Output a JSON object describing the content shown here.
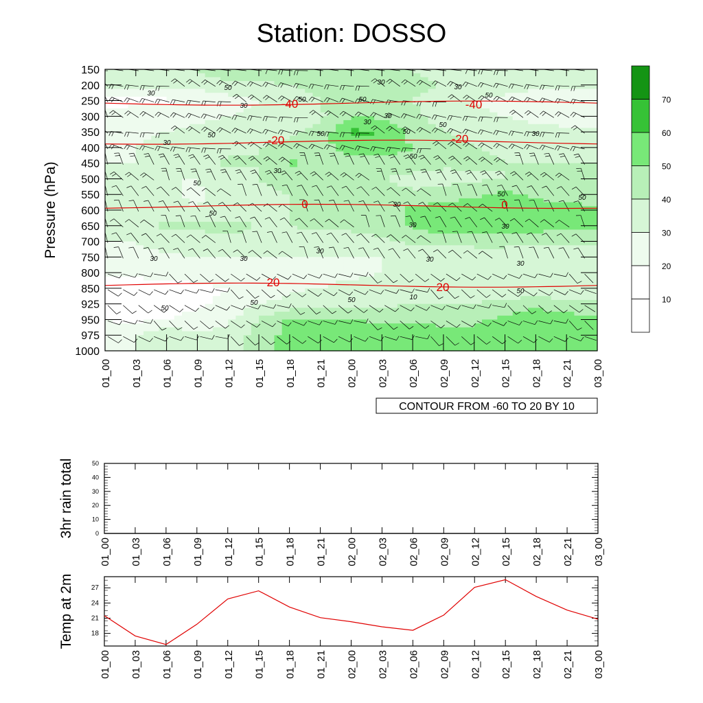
{
  "title": "Station: DOSSO",
  "chart_data": [
    {
      "type": "heatmap",
      "name": "upper-air cross section",
      "ylabel": "Pressure (hPa)",
      "y_ticks": [
        150,
        200,
        250,
        300,
        350,
        400,
        450,
        500,
        550,
        600,
        650,
        700,
        750,
        800,
        850,
        925,
        950,
        975,
        1000
      ],
      "x_ticks": [
        "01_00",
        "01_03",
        "01_06",
        "01_09",
        "01_12",
        "01_15",
        "01_18",
        "01_21",
        "02_00",
        "02_03",
        "02_06",
        "02_09",
        "02_12",
        "02_15",
        "02_18",
        "02_21",
        "03_00"
      ],
      "fill_levels": [
        10,
        20,
        30,
        40,
        50,
        60,
        70
      ],
      "fill_colors": [
        "#ffffff",
        "#ffffff",
        "#eefbee",
        "#d6f6d6",
        "#b8efb8",
        "#78e878",
        "#36c236",
        "#149414"
      ],
      "colorbar_labels": [
        "10",
        "20",
        "30",
        "40",
        "50",
        "60",
        "70"
      ],
      "contour_info": "CONTOUR FROM -60 TO 20 BY 10",
      "red_contours": [
        {
          "label": "-40",
          "pressure": 258
        },
        {
          "label": "-20",
          "pressure": 383
        },
        {
          "label": "0",
          "pressure": 588
        },
        {
          "label": "20",
          "pressure": 840
        }
      ],
      "red_contour_labels": [
        "-40",
        "-40",
        "-20",
        "-20",
        "0",
        "0",
        "20",
        "20"
      ],
      "black_contour_labels": [
        "50",
        "30",
        "50",
        "50",
        "30",
        "30",
        "50",
        "30",
        "30",
        "30",
        "50",
        "50",
        "30",
        "50",
        "50",
        "30",
        "50",
        "30",
        "50",
        "50",
        "50",
        "30",
        "50",
        "30",
        "30",
        "30",
        "30",
        "30",
        "30",
        "30",
        "50",
        "10",
        "50",
        "50",
        "50"
      ],
      "rh_field": [
        [
          40,
          40,
          40,
          40,
          50,
          50,
          45,
          40,
          40,
          45,
          40,
          35,
          35,
          40,
          40,
          40,
          40
        ],
        [
          32,
          32,
          32,
          34,
          36,
          38,
          40,
          42,
          45,
          46,
          44,
          40,
          38,
          36,
          34,
          32,
          32
        ],
        [
          18,
          18,
          18,
          22,
          26,
          30,
          35,
          40,
          48,
          45,
          40,
          35,
          30,
          26,
          22,
          20,
          20
        ],
        [
          22,
          24,
          26,
          28,
          30,
          32,
          34,
          38,
          50,
          48,
          42,
          36,
          32,
          30,
          28,
          26,
          26
        ],
        [
          28,
          28,
          30,
          32,
          34,
          36,
          38,
          44,
          62,
          60,
          46,
          40,
          36,
          34,
          32,
          32,
          32
        ],
        [
          28,
          30,
          32,
          34,
          38,
          40,
          42,
          46,
          56,
          56,
          50,
          44,
          40,
          38,
          36,
          36,
          36
        ],
        [
          30,
          30,
          32,
          36,
          42,
          40,
          52,
          46,
          46,
          46,
          46,
          42,
          42,
          40,
          40,
          40,
          40
        ],
        [
          32,
          32,
          30,
          30,
          36,
          40,
          42,
          44,
          44,
          40,
          36,
          36,
          38,
          40,
          42,
          42,
          42
        ],
        [
          34,
          34,
          32,
          28,
          34,
          38,
          40,
          42,
          44,
          44,
          42,
          44,
          48,
          52,
          48,
          46,
          44
        ],
        [
          36,
          36,
          34,
          30,
          36,
          38,
          40,
          42,
          44,
          46,
          52,
          56,
          56,
          56,
          54,
          54,
          52
        ],
        [
          34,
          36,
          42,
          42,
          42,
          40,
          40,
          42,
          42,
          44,
          52,
          56,
          56,
          56,
          54,
          54,
          52
        ],
        [
          30,
          30,
          34,
          36,
          38,
          38,
          36,
          36,
          36,
          38,
          42,
          44,
          46,
          46,
          44,
          42,
          42
        ],
        [
          28,
          28,
          28,
          30,
          30,
          30,
          30,
          30,
          30,
          30,
          30,
          30,
          30,
          30,
          30,
          30,
          30
        ],
        [
          22,
          22,
          24,
          24,
          26,
          26,
          26,
          28,
          28,
          30,
          30,
          30,
          30,
          30,
          30,
          30,
          30
        ],
        [
          16,
          16,
          16,
          18,
          20,
          22,
          28,
          30,
          32,
          34,
          36,
          32,
          30,
          30,
          32,
          30,
          30
        ],
        [
          20,
          18,
          18,
          18,
          22,
          30,
          34,
          36,
          38,
          38,
          40,
          40,
          40,
          44,
          46,
          44,
          44
        ],
        [
          20,
          18,
          20,
          22,
          28,
          40,
          52,
          52,
          50,
          48,
          48,
          46,
          48,
          52,
          58,
          54,
          52
        ],
        [
          22,
          30,
          38,
          32,
          34,
          44,
          54,
          56,
          58,
          58,
          60,
          54,
          52,
          56,
          56,
          54,
          58
        ],
        [
          22,
          30,
          38,
          32,
          34,
          44,
          54,
          56,
          58,
          58,
          60,
          54,
          52,
          56,
          56,
          54,
          58
        ]
      ]
    },
    {
      "type": "line",
      "name": "3hr rain total",
      "ylabel": "3hr rain total",
      "x": [
        "01_00",
        "01_03",
        "01_06",
        "01_09",
        "01_12",
        "01_15",
        "01_18",
        "01_21",
        "02_00",
        "02_03",
        "02_06",
        "02_09",
        "02_12",
        "02_15",
        "02_18",
        "02_21",
        "03_00"
      ],
      "values": [
        0,
        0,
        0,
        0,
        0,
        0,
        0,
        0,
        0,
        0,
        0,
        0,
        0,
        0,
        0,
        0,
        0
      ],
      "ylim": [
        0,
        50
      ],
      "y_ticks": [
        "0",
        "10",
        "20",
        "30",
        "40",
        "50"
      ]
    },
    {
      "type": "line",
      "name": "Temp at 2m",
      "ylabel": "Temp at 2m",
      "x": [
        "01_00",
        "01_03",
        "01_06",
        "01_09",
        "01_12",
        "01_15",
        "01_18",
        "01_21",
        "02_00",
        "02_03",
        "02_06",
        "02_09",
        "02_12",
        "02_15",
        "02_18",
        "02_21",
        "03_00"
      ],
      "values": [
        21.5,
        17.5,
        15.8,
        19.8,
        24.8,
        26.4,
        23.2,
        21.1,
        20.3,
        19.3,
        18.6,
        21.6,
        27.1,
        28.6,
        25.3,
        22.6,
        20.8
      ],
      "ylim": [
        15.5,
        29.2
      ],
      "y_ticks": [
        "18",
        "21",
        "24",
        "27"
      ],
      "line_color": "#e00000"
    }
  ]
}
